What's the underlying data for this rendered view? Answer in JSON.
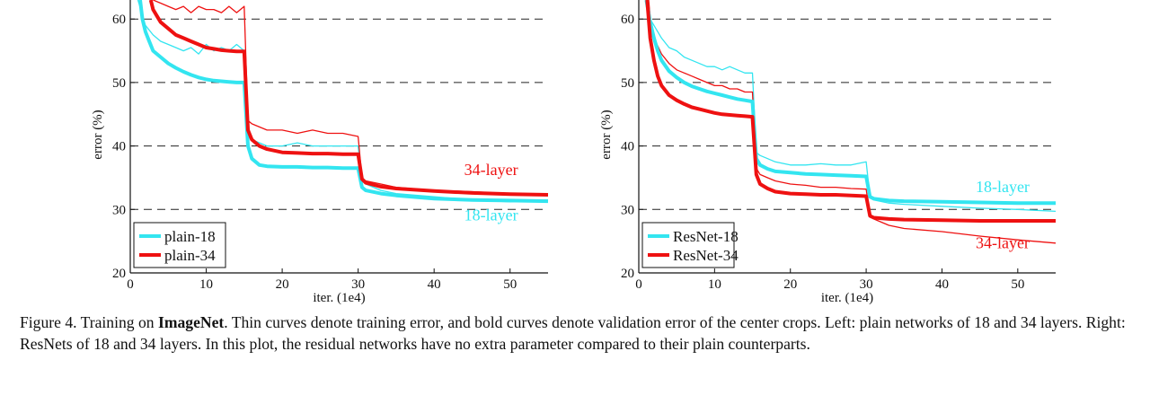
{
  "caption": {
    "label": "Figure 4. Training on",
    "bold": "ImageNet",
    "text": ". Thin curves denote training error, and bold curves denote validation error of the center crops. Left: plain networks of 18 and 34 layers. Right: ResNets of 18 and 34 layers. In this plot, the residual networks have no extra parameter compared to their plain counterparts."
  },
  "colors": {
    "cyan": "#33e5f0",
    "red": "#ee1111",
    "grid": "#222222"
  },
  "chart_data": [
    {
      "type": "line",
      "title": "",
      "xlabel": "iter. (1e4)",
      "ylabel": "error (%)",
      "xlim": [
        0,
        55
      ],
      "ylim": [
        20,
        63
      ],
      "xticks": [
        "0",
        "10",
        "20",
        "30",
        "40",
        "50"
      ],
      "yticks": [
        "20",
        "30",
        "40",
        "50",
        "60"
      ],
      "grid": "dashed horizontal at 30, 40, 50, 60",
      "legend_position": "bottom-left",
      "legend": [
        "plain-18",
        "plain-34"
      ],
      "annotations": [
        {
          "text": "34-layer",
          "x": 47.5,
          "y": 35.4,
          "color": "red"
        },
        {
          "text": "18-layer",
          "x": 47.5,
          "y": 28.3,
          "color": "cyan"
        }
      ],
      "series": [
        {
          "name": "plain-18 train",
          "color": "cyan",
          "weight": "thin",
          "x": [
            1,
            1.5,
            2,
            3,
            4,
            5,
            6,
            7,
            8,
            9,
            10,
            11,
            12,
            13,
            14,
            15,
            15.5,
            16,
            17,
            18,
            20,
            22,
            24,
            26,
            28,
            30,
            30.5,
            31,
            33,
            35,
            40,
            45,
            50,
            55
          ],
          "y": [
            63,
            61,
            59,
            57.5,
            56.5,
            56,
            55.5,
            55,
            55.5,
            54.5,
            56,
            55,
            55.5,
            55,
            56,
            55,
            42,
            41,
            40.5,
            40,
            40,
            40.5,
            40,
            40,
            40,
            40,
            34.5,
            34,
            33,
            32.5,
            32,
            31.5,
            31.2,
            31.5
          ]
        },
        {
          "name": "plain-34 train",
          "color": "red",
          "weight": "thin",
          "x": [
            3,
            4,
            5,
            6,
            7,
            8,
            9,
            10,
            11,
            12,
            13,
            14,
            15,
            15.5,
            16,
            17,
            18,
            20,
            22,
            24,
            26,
            28,
            30,
            30.5,
            31,
            33,
            35,
            40,
            45,
            50,
            55
          ],
          "y": [
            63,
            62.5,
            62,
            61.5,
            62,
            61,
            62,
            61.5,
            61.5,
            61,
            62,
            61,
            62,
            44,
            43.5,
            43,
            42.5,
            42.5,
            42,
            42.5,
            42,
            42,
            41.5,
            35,
            34.5,
            34,
            33.5,
            33,
            32.8,
            32.5,
            32.3
          ]
        },
        {
          "name": "plain-18 val",
          "color": "cyan",
          "weight": "bold",
          "x": [
            1.3,
            1.6,
            2,
            2.5,
            3,
            4,
            5,
            6,
            7,
            8,
            9,
            10,
            11,
            12,
            13,
            14,
            15,
            15.5,
            16,
            17,
            18,
            20,
            22,
            24,
            26,
            28,
            30,
            30.5,
            31,
            33,
            35,
            40,
            45,
            50,
            55
          ],
          "y": [
            63,
            60,
            58,
            56.5,
            55,
            54,
            53,
            52.3,
            51.7,
            51.2,
            50.8,
            50.5,
            50.3,
            50.2,
            50.1,
            50,
            50,
            40,
            38,
            37,
            36.8,
            36.7,
            36.7,
            36.6,
            36.6,
            36.5,
            36.5,
            33.5,
            33,
            32.5,
            32.2,
            31.7,
            31.5,
            31.4,
            31.3
          ]
        },
        {
          "name": "plain-34 val",
          "color": "red",
          "weight": "bold",
          "x": [
            2.7,
            3,
            3.5,
            4,
            5,
            6,
            7,
            8,
            9,
            10,
            11,
            12,
            13,
            14,
            15,
            15.5,
            16,
            17,
            18,
            20,
            22,
            24,
            26,
            28,
            30,
            30.5,
            31,
            33,
            35,
            40,
            45,
            50,
            55
          ],
          "y": [
            63,
            61.5,
            60.5,
            59.5,
            58.5,
            57.5,
            57,
            56.5,
            56,
            55.5,
            55.3,
            55.1,
            55,
            54.9,
            54.9,
            42.5,
            41,
            40,
            39.5,
            39,
            38.9,
            38.8,
            38.8,
            38.7,
            38.7,
            34.8,
            34.2,
            33.6,
            33.3,
            32.9,
            32.6,
            32.4,
            32.3
          ]
        }
      ]
    },
    {
      "type": "line",
      "title": "",
      "xlabel": "iter. (1e4)",
      "ylabel": "error (%)",
      "xlim": [
        0,
        55
      ],
      "ylim": [
        20,
        63
      ],
      "xticks": [
        "0",
        "10",
        "20",
        "30",
        "40",
        "50"
      ],
      "yticks": [
        "20",
        "30",
        "40",
        "50",
        "60"
      ],
      "grid": "dashed horizontal at 30, 40, 50, 60",
      "legend_position": "bottom-left",
      "legend": [
        "ResNet-18",
        "ResNet-34"
      ],
      "annotations": [
        {
          "text": "18-layer",
          "x": 48,
          "y": 32.7,
          "color": "cyan"
        },
        {
          "text": "34-layer",
          "x": 48,
          "y": 23.9,
          "color": "red"
        }
      ],
      "series": [
        {
          "name": "ResNet-18 train",
          "color": "cyan",
          "weight": "thin",
          "x": [
            1,
            1.5,
            2,
            3,
            4,
            5,
            6,
            7,
            8,
            9,
            10,
            11,
            12,
            13,
            14,
            15,
            15.5,
            16,
            17,
            18,
            20,
            22,
            24,
            26,
            28,
            30,
            30.5,
            31,
            33,
            35,
            40,
            45,
            50,
            55
          ],
          "y": [
            63,
            60,
            59,
            57,
            55.5,
            55,
            54,
            53.5,
            53,
            52.5,
            52.5,
            52,
            52.5,
            52,
            51.5,
            51.5,
            39,
            38.5,
            38,
            37.5,
            37,
            37,
            37.2,
            37,
            37,
            37.5,
            32,
            31.5,
            31,
            30.8,
            30.5,
            30.2,
            30,
            29.7
          ]
        },
        {
          "name": "ResNet-34 train",
          "color": "red",
          "weight": "thin",
          "x": [
            1.3,
            1.6,
            2,
            3,
            4,
            5,
            6,
            7,
            8,
            9,
            10,
            11,
            12,
            13,
            14,
            15,
            15.5,
            16,
            17,
            18,
            20,
            22,
            24,
            26,
            28,
            30,
            30.5,
            31,
            33,
            35,
            40,
            45,
            50,
            55
          ],
          "y": [
            63,
            59,
            57,
            54.5,
            53,
            52,
            51.5,
            51,
            50.5,
            50,
            49.5,
            49.5,
            49,
            49,
            48.5,
            48.5,
            36.5,
            35.5,
            35,
            34.5,
            34,
            33.8,
            33.5,
            33.5,
            33.3,
            33.2,
            29,
            28.5,
            27.5,
            27,
            26.5,
            25.8,
            25.2,
            24.7
          ]
        },
        {
          "name": "ResNet-18 val",
          "color": "cyan",
          "weight": "bold",
          "x": [
            1,
            1.5,
            2,
            2.5,
            3,
            4,
            5,
            6,
            7,
            8,
            9,
            10,
            11,
            12,
            13,
            14,
            15,
            15.5,
            16,
            17,
            18,
            20,
            22,
            24,
            26,
            28,
            30,
            30.5,
            31,
            33,
            35,
            40,
            45,
            50,
            55
          ],
          "y": [
            63,
            59.5,
            57,
            55,
            53.5,
            51.8,
            50.8,
            50,
            49.4,
            49,
            48.6,
            48.3,
            48,
            47.7,
            47.4,
            47.2,
            47,
            38,
            37,
            36.4,
            36,
            35.8,
            35.6,
            35.5,
            35.4,
            35.3,
            35.2,
            32,
            31.7,
            31.4,
            31.3,
            31.2,
            31.1,
            31,
            31
          ]
        },
        {
          "name": "ResNet-34 val",
          "color": "red",
          "weight": "bold",
          "x": [
            1.1,
            1.5,
            2,
            2.5,
            3,
            4,
            5,
            6,
            7,
            8,
            9,
            10,
            11,
            12,
            13,
            14,
            15,
            15.5,
            16,
            17,
            18,
            20,
            22,
            24,
            26,
            28,
            30,
            30.5,
            31,
            33,
            35,
            40,
            45,
            50,
            55
          ],
          "y": [
            63,
            57,
            53.5,
            51,
            49.5,
            48,
            47.2,
            46.6,
            46.1,
            45.8,
            45.5,
            45.2,
            45,
            44.9,
            44.8,
            44.7,
            44.6,
            35.5,
            34,
            33.3,
            32.8,
            32.5,
            32.4,
            32.3,
            32.3,
            32.2,
            32.1,
            29,
            28.7,
            28.5,
            28.4,
            28.3,
            28.2,
            28.2,
            28.2
          ]
        }
      ]
    }
  ]
}
